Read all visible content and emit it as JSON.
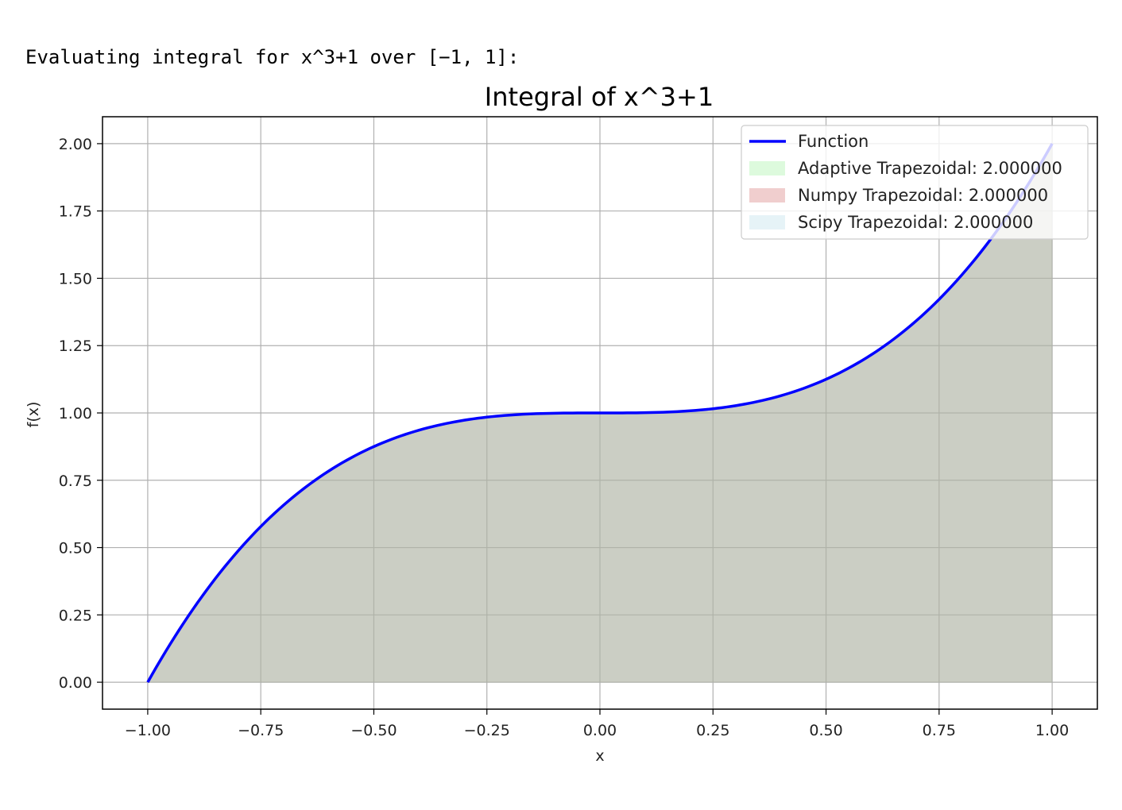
{
  "output": {
    "text": "Evaluating integral for x^3+1 over [−1, 1]:"
  },
  "chart_data": {
    "type": "line",
    "title": "Integral of x^3+1",
    "xlabel": "x",
    "ylabel": "f(x)",
    "xlim": [
      -1.1,
      1.1
    ],
    "ylim": [
      -0.1,
      2.1
    ],
    "grid": true,
    "legend_position": "top-right",
    "function": "x^3+1",
    "x_range": [
      -1,
      1
    ],
    "xticks": [
      -1.0,
      -0.75,
      -0.5,
      -0.25,
      0.0,
      0.25,
      0.5,
      0.75,
      1.0
    ],
    "xtick_labels": [
      "−1.00",
      "−0.75",
      "−0.50",
      "−0.25",
      "0.00",
      "0.25",
      "0.50",
      "0.75",
      "1.00"
    ],
    "yticks": [
      0.0,
      0.25,
      0.5,
      0.75,
      1.0,
      1.25,
      1.5,
      1.75,
      2.0
    ],
    "ytick_labels": [
      "0.00",
      "0.25",
      "0.50",
      "0.75",
      "1.00",
      "1.25",
      "1.50",
      "1.75",
      "2.00"
    ],
    "series": [
      {
        "name": "Function",
        "kind": "line",
        "color": "#0000ff",
        "x": [
          -1.0,
          -0.9,
          -0.8,
          -0.7,
          -0.6,
          -0.5,
          -0.4,
          -0.3,
          -0.2,
          -0.1,
          0.0,
          0.1,
          0.2,
          0.3,
          0.4,
          0.5,
          0.6,
          0.7,
          0.8,
          0.9,
          1.0
        ],
        "y": [
          0.0,
          0.271,
          0.488,
          0.657,
          0.784,
          0.875,
          0.936,
          0.973,
          0.992,
          0.999,
          1.0,
          1.001,
          1.008,
          1.027,
          1.064,
          1.125,
          1.216,
          1.343,
          1.512,
          1.729,
          2.0
        ]
      }
    ],
    "fills": [
      {
        "name": "Adaptive Trapezoidal: 2.000000",
        "color": "#90ee90",
        "alpha": 0.3
      },
      {
        "name": "Numpy Trapezoidal: 2.000000",
        "color": "#cd5c5c",
        "alpha": 0.3
      },
      {
        "name": "Scipy Trapezoidal: 2.000000",
        "color": "#add8e6",
        "alpha": 0.3
      }
    ]
  }
}
